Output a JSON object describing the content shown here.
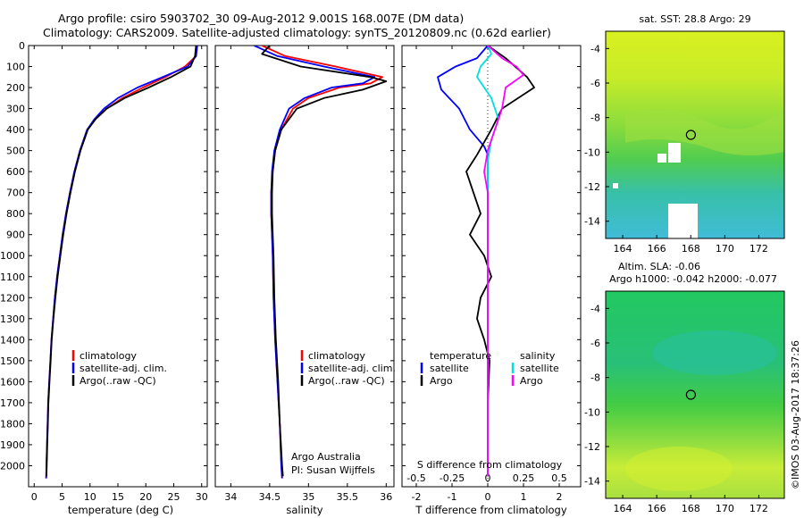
{
  "header": {
    "line1": "Argo profile: csiro 5903702_30 09-Aug-2012 9.001S 168.007E (DM data)",
    "line2": "Climatology: CARS2009. Satellite-adjusted climatology: synTS_20120809.nc (0.62d earlier)"
  },
  "colors": {
    "climatology": "#ff0000",
    "satellite": "#0000ff",
    "argo": "#000000",
    "satellite_salinity": "#00e0e0",
    "argo_salinity": "#ff00ff"
  },
  "chart_data": [
    {
      "type": "line",
      "panel": "temperature",
      "xlabel": "temperature (deg C)",
      "ylabel": "",
      "xlim": [
        -1,
        31
      ],
      "ylim": [
        2100,
        0
      ],
      "xticks": [
        0,
        5,
        10,
        15,
        20,
        25,
        30
      ],
      "yticks": [
        0,
        100,
        200,
        300,
        400,
        500,
        600,
        700,
        800,
        900,
        1000,
        1100,
        1200,
        1300,
        1400,
        1500,
        1600,
        1700,
        1800,
        1900,
        2000
      ],
      "legend": [
        "climatology",
        "satellite-adj. clim.",
        "Argo(..raw -QC)"
      ],
      "legend_position": "lower-center",
      "series": [
        {
          "name": "climatology",
          "color": "climatology",
          "points": [
            [
              29.1,
              0
            ],
            [
              29.0,
              50
            ],
            [
              27.0,
              100
            ],
            [
              23.5,
              150
            ],
            [
              19.5,
              200
            ],
            [
              15.8,
              250
            ],
            [
              13.0,
              300
            ],
            [
              11.0,
              350
            ],
            [
              9.5,
              400
            ],
            [
              8.2,
              500
            ],
            [
              7.2,
              600
            ],
            [
              6.4,
              700
            ],
            [
              5.7,
              800
            ],
            [
              5.1,
              900
            ],
            [
              4.6,
              1000
            ],
            [
              4.1,
              1100
            ],
            [
              3.7,
              1200
            ],
            [
              3.4,
              1300
            ],
            [
              3.1,
              1400
            ],
            [
              2.9,
              1500
            ],
            [
              2.7,
              1600
            ],
            [
              2.5,
              1700
            ],
            [
              2.4,
              1800
            ],
            [
              2.3,
              1900
            ],
            [
              2.2,
              2000
            ],
            [
              2.15,
              2060
            ]
          ]
        },
        {
          "name": "satellite-adj. clim.",
          "color": "satellite",
          "points": [
            [
              29.2,
              0
            ],
            [
              29.0,
              50
            ],
            [
              27.5,
              100
            ],
            [
              23.0,
              150
            ],
            [
              18.5,
              200
            ],
            [
              15.0,
              250
            ],
            [
              12.5,
              300
            ],
            [
              10.8,
              350
            ],
            [
              9.5,
              400
            ],
            [
              8.2,
              500
            ],
            [
              7.2,
              600
            ],
            [
              6.4,
              700
            ],
            [
              5.7,
              800
            ],
            [
              5.1,
              900
            ],
            [
              4.6,
              1000
            ],
            [
              4.1,
              1100
            ],
            [
              3.7,
              1200
            ],
            [
              3.4,
              1300
            ],
            [
              3.1,
              1400
            ],
            [
              2.9,
              1500
            ],
            [
              2.7,
              1600
            ],
            [
              2.5,
              1700
            ],
            [
              2.4,
              1800
            ],
            [
              2.3,
              1900
            ],
            [
              2.2,
              2000
            ],
            [
              2.15,
              2060
            ]
          ]
        },
        {
          "name": "Argo(..raw -QC)",
          "color": "argo",
          "points": [
            [
              29.0,
              0
            ],
            [
              28.8,
              50
            ],
            [
              28.0,
              100
            ],
            [
              24.5,
              150
            ],
            [
              20.5,
              200
            ],
            [
              16.2,
              250
            ],
            [
              13.0,
              300
            ],
            [
              11.0,
              350
            ],
            [
              9.6,
              400
            ],
            [
              8.3,
              500
            ],
            [
              7.3,
              600
            ],
            [
              6.5,
              700
            ],
            [
              5.8,
              800
            ],
            [
              5.2,
              900
            ],
            [
              4.7,
              1000
            ],
            [
              4.2,
              1100
            ],
            [
              3.8,
              1200
            ],
            [
              3.45,
              1300
            ],
            [
              3.15,
              1400
            ],
            [
              2.95,
              1500
            ],
            [
              2.75,
              1600
            ],
            [
              2.55,
              1700
            ],
            [
              2.45,
              1800
            ],
            [
              2.35,
              1900
            ],
            [
              2.25,
              2000
            ],
            [
              2.2,
              2050
            ]
          ]
        }
      ]
    },
    {
      "type": "line",
      "panel": "salinity",
      "xlabel": "salinity",
      "xlim": [
        33.8,
        36.1
      ],
      "ylim": [
        2100,
        0
      ],
      "xticks": [
        34,
        34.5,
        35,
        35.5,
        36
      ],
      "legend": [
        "climatology",
        "satellite-adj. clim.",
        "Argo(..raw -QC)"
      ],
      "legend_position": "lower-center",
      "annotation": [
        "Argo Australia",
        "PI: Susan Wijffels"
      ],
      "series": [
        {
          "name": "climatology",
          "color": "climatology",
          "points": [
            [
              34.4,
              0
            ],
            [
              34.7,
              50
            ],
            [
              35.35,
              100
            ],
            [
              35.95,
              150
            ],
            [
              35.8,
              180
            ],
            [
              35.4,
              200
            ],
            [
              35.0,
              250
            ],
            [
              34.8,
              300
            ],
            [
              34.65,
              400
            ],
            [
              34.57,
              500
            ],
            [
              34.54,
              600
            ],
            [
              34.52,
              700
            ],
            [
              34.52,
              800
            ],
            [
              34.53,
              900
            ],
            [
              34.54,
              1000
            ],
            [
              34.55,
              1200
            ],
            [
              34.57,
              1400
            ],
            [
              34.6,
              1600
            ],
            [
              34.63,
              1800
            ],
            [
              34.65,
              2000
            ],
            [
              34.66,
              2060
            ]
          ]
        },
        {
          "name": "satellite-adj. clim.",
          "color": "satellite",
          "points": [
            [
              34.3,
              0
            ],
            [
              34.6,
              50
            ],
            [
              35.2,
              100
            ],
            [
              35.85,
              150
            ],
            [
              35.7,
              180
            ],
            [
              35.3,
              200
            ],
            [
              34.95,
              250
            ],
            [
              34.75,
              300
            ],
            [
              34.63,
              400
            ],
            [
              34.56,
              500
            ],
            [
              34.53,
              600
            ],
            [
              34.52,
              700
            ],
            [
              34.52,
              800
            ],
            [
              34.53,
              900
            ],
            [
              34.54,
              1000
            ],
            [
              34.55,
              1200
            ],
            [
              34.57,
              1400
            ],
            [
              34.6,
              1600
            ],
            [
              34.63,
              1800
            ],
            [
              34.65,
              2000
            ],
            [
              34.66,
              2060
            ]
          ]
        },
        {
          "name": "Argo(..raw -QC)",
          "color": "argo",
          "points": [
            [
              34.5,
              0
            ],
            [
              34.4,
              40
            ],
            [
              34.9,
              100
            ],
            [
              35.8,
              150
            ],
            [
              36.0,
              170
            ],
            [
              35.7,
              210
            ],
            [
              35.2,
              250
            ],
            [
              34.85,
              300
            ],
            [
              34.65,
              400
            ],
            [
              34.57,
              500
            ],
            [
              34.54,
              600
            ],
            [
              34.53,
              700
            ],
            [
              34.53,
              800
            ],
            [
              34.54,
              900
            ],
            [
              34.55,
              1000
            ],
            [
              34.56,
              1200
            ],
            [
              34.58,
              1400
            ],
            [
              34.61,
              1600
            ],
            [
              34.63,
              1800
            ],
            [
              34.66,
              2000
            ],
            [
              34.67,
              2050
            ]
          ]
        }
      ]
    },
    {
      "type": "line",
      "panel": "difference",
      "xlabel": "T difference from climatology",
      "top_xlabel": "S difference from climatology",
      "xlim": [
        -2.4,
        2.6
      ],
      "ylim": [
        2100,
        0
      ],
      "xticks": [
        -2,
        -1,
        0,
        1,
        2
      ],
      "xticklabels": [
        "-2",
        "-1",
        "0",
        "1",
        "2"
      ],
      "top_xticklabels": [
        "-0.5",
        "-0.25",
        "0",
        "0.25",
        "0.5"
      ],
      "legend": [
        "temperature",
        "satellite",
        "Argo",
        "salinity",
        "satellite",
        "Argo"
      ],
      "series": [
        {
          "name": "satellite",
          "group": "temperature",
          "color": "satellite",
          "points": [
            [
              0,
              0
            ],
            [
              -0.3,
              60
            ],
            [
              -0.9,
              100
            ],
            [
              -1.4,
              150
            ],
            [
              -1.3,
              210
            ],
            [
              -0.8,
              300
            ],
            [
              -0.5,
              400
            ],
            [
              -0.1,
              480
            ],
            [
              0,
              520
            ],
            [
              0,
              2050
            ]
          ]
        },
        {
          "name": "Argo",
          "group": "temperature",
          "color": "argo",
          "points": [
            [
              0,
              0
            ],
            [
              0.5,
              60
            ],
            [
              1.1,
              150
            ],
            [
              1.3,
              200
            ],
            [
              0.4,
              300
            ],
            [
              0.1,
              400
            ],
            [
              -0.3,
              520
            ],
            [
              -0.6,
              600
            ],
            [
              -0.4,
              700
            ],
            [
              -0.2,
              800
            ],
            [
              -0.5,
              900
            ],
            [
              -0.1,
              1000
            ],
            [
              0.1,
              1100
            ],
            [
              -0.2,
              1200
            ],
            [
              -0.3,
              1300
            ],
            [
              -0.1,
              1400
            ],
            [
              0.05,
              1500
            ],
            [
              0,
              1700
            ],
            [
              0,
              2050
            ]
          ]
        },
        {
          "name": "satellite",
          "group": "salinity",
          "color": "satellite_salinity",
          "points": [
            [
              0,
              0
            ],
            [
              0.1,
              40
            ],
            [
              -0.2,
              100
            ],
            [
              -0.3,
              150
            ],
            [
              -0.1,
              200
            ],
            [
              0.1,
              250
            ],
            [
              0.3,
              350
            ],
            [
              0.2,
              400
            ],
            [
              0.1,
              450
            ],
            [
              0,
              550
            ],
            [
              0,
              2050
            ]
          ]
        },
        {
          "name": "Argo",
          "group": "salinity",
          "color": "argo_salinity",
          "points": [
            [
              0,
              0
            ],
            [
              0.4,
              60
            ],
            [
              0.8,
              100
            ],
            [
              1.0,
              140
            ],
            [
              0.5,
              200
            ],
            [
              0.4,
              300
            ],
            [
              0.2,
              400
            ],
            [
              0,
              500
            ],
            [
              -0.1,
              600
            ],
            [
              0,
              700
            ],
            [
              0,
              2050
            ]
          ]
        }
      ]
    },
    {
      "type": "heatmap",
      "panel": "sst-map",
      "title": "sat. SST: 28.8 Argo: 29",
      "xlim": [
        163,
        173.5
      ],
      "ylim": [
        -15,
        -3
      ],
      "xticks": [
        164,
        166,
        168,
        170,
        172
      ],
      "yticks": [
        -4,
        -6,
        -8,
        -10,
        -12,
        -14
      ],
      "marker": {
        "lon": 168.007,
        "lat": -9.001
      }
    },
    {
      "type": "heatmap",
      "panel": "sla-map",
      "title": "Altim. SLA: -0.06",
      "subtitle": "Argo h1000: -0.042 h2000: -0.077",
      "xlim": [
        163,
        173.5
      ],
      "ylim": [
        -15,
        -3
      ],
      "xticks": [
        164,
        166,
        168,
        170,
        172
      ],
      "yticks": [
        -4,
        -6,
        -8,
        -10,
        -12,
        -14
      ],
      "marker": {
        "lon": 168.007,
        "lat": -9.001
      }
    }
  ],
  "credit": "©IMOS 03-Aug-2017 18:37:26"
}
